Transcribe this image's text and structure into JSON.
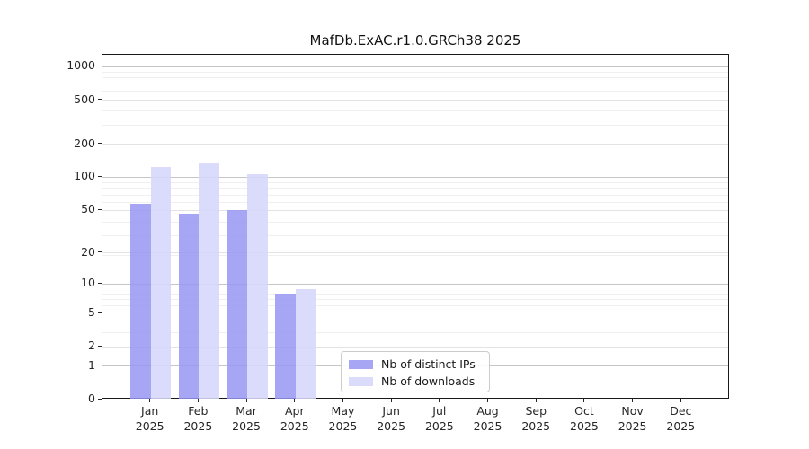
{
  "chart_data": {
    "type": "bar",
    "title": "MafDb.ExAC.r1.0.GRCh38 2025",
    "year_label": "2025",
    "categories": [
      "Jan",
      "Feb",
      "Mar",
      "Apr",
      "May",
      "Jun",
      "Jul",
      "Aug",
      "Sep",
      "Oct",
      "Nov",
      "Dec"
    ],
    "series": [
      {
        "name": "Nb of distinct IPs",
        "color": "rgba(150,150,242,0.85)",
        "values": [
          57,
          46,
          50,
          8,
          0,
          0,
          0,
          0,
          0,
          0,
          0,
          0
        ]
      },
      {
        "name": "Nb of downloads",
        "color": "rgba(214,214,250,0.88)",
        "values": [
          125,
          137,
          107,
          9,
          0,
          0,
          0,
          0,
          0,
          0,
          0,
          0
        ]
      }
    ],
    "xlabel": "",
    "ylabel": "",
    "yscale": "log1p",
    "ylim": [
      0,
      1286
    ],
    "yticks": [
      0,
      1,
      2,
      5,
      10,
      20,
      50,
      100,
      200,
      500,
      1000
    ],
    "gridlines": {
      "major": [
        1,
        10,
        100,
        1000
      ],
      "minor": [
        2,
        5,
        20,
        50,
        200,
        500
      ],
      "faint": [
        3,
        6,
        7,
        8,
        19,
        29,
        39,
        59,
        69,
        79,
        89,
        199,
        299,
        399,
        599,
        699,
        799,
        899
      ]
    },
    "grid": true,
    "legend_position": "lower center"
  }
}
